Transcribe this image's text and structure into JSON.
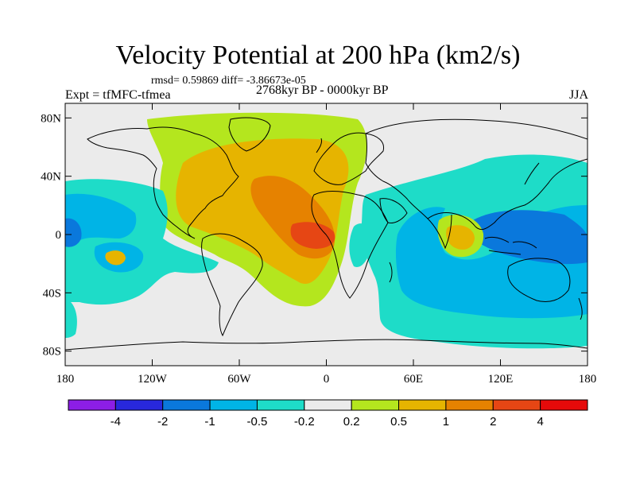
{
  "title": "Velocity Potential at 200 hPa (km2/s)",
  "stats": "rmsd= 0.59869 diff= -3.86673e-05",
  "experiment": "Expt = tfMFC-tfmea",
  "period": "2768kyr BP - 0000kyr BP",
  "season": "JJA",
  "map": {
    "lat_ticks": [
      {
        "lat": 80,
        "label": "80N"
      },
      {
        "lat": 40,
        "label": "40N"
      },
      {
        "lat": 0,
        "label": "0"
      },
      {
        "lat": -40,
        "label": "40S"
      },
      {
        "lat": -80,
        "label": "80S"
      }
    ],
    "lon_ticks": [
      {
        "lon": -180,
        "label": "180"
      },
      {
        "lon": -120,
        "label": "120W"
      },
      {
        "lon": -60,
        "label": "60W"
      },
      {
        "lon": 0,
        "label": "0"
      },
      {
        "lon": 60,
        "label": "60E"
      },
      {
        "lon": 120,
        "label": "120E"
      },
      {
        "lon": 180,
        "label": "180"
      }
    ]
  },
  "colorbar": {
    "colors": [
      "#8c1ee6",
      "#2828dc",
      "#0a78dc",
      "#00b4e6",
      "#1edcc8",
      "#ebebeb",
      "#b4e61e",
      "#e6b400",
      "#e68200",
      "#e64614",
      "#e60a0a"
    ],
    "labels": [
      "-4",
      "-2",
      "-1",
      "-0.5",
      "-0.2",
      "0.2",
      "0.5",
      "1",
      "2",
      "4"
    ]
  }
}
